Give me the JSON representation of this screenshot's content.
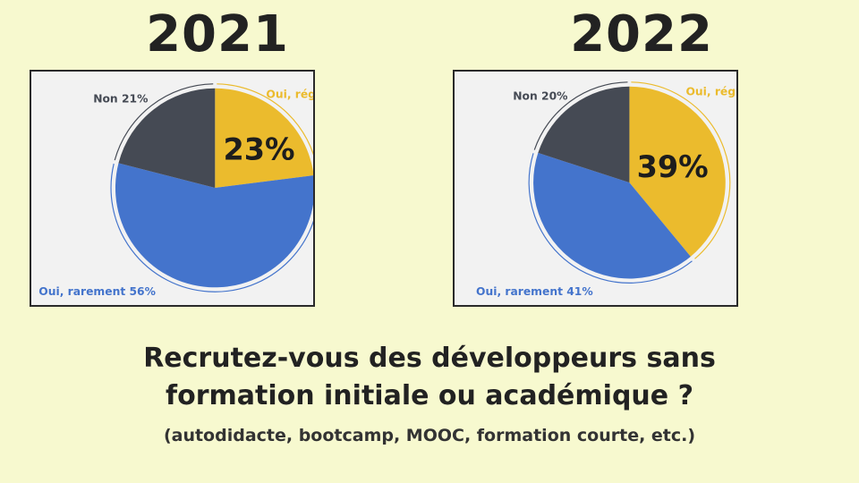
{
  "colors": {
    "background": "#f7f9cf",
    "oui_regulierement": "#ebbb2d",
    "oui_rarement": "#4474cc",
    "non": "#454a54"
  },
  "chart_data": [
    {
      "type": "pie",
      "title": "2021",
      "highlight": "23%",
      "slices": [
        {
          "key": "oui_regulierement",
          "value": 23,
          "label": "Oui, régulièrement",
          "color": "#ebbb2d"
        },
        {
          "key": "oui_rarement",
          "value": 56,
          "label": "Oui, rarement 56%",
          "color": "#4474cc"
        },
        {
          "key": "non",
          "value": 21,
          "label": "Non 21%",
          "color": "#454a54"
        }
      ]
    },
    {
      "type": "pie",
      "title": "2022",
      "highlight": "39%",
      "slices": [
        {
          "key": "oui_regulierement",
          "value": 39,
          "label": "Oui, régulièrement",
          "color": "#ebbb2d"
        },
        {
          "key": "oui_rarement",
          "value": 41,
          "label": "Oui, rarement 41%",
          "color": "#4474cc"
        },
        {
          "key": "non",
          "value": 20,
          "label": "Non 20%",
          "color": "#454a54"
        }
      ]
    }
  ],
  "question": {
    "line1": "Recrutez-vous des développeurs sans",
    "line2": "formation initiale ou académique ?",
    "subtitle": "(autodidacte, bootcamp, MOOC, formation courte, etc.)"
  }
}
